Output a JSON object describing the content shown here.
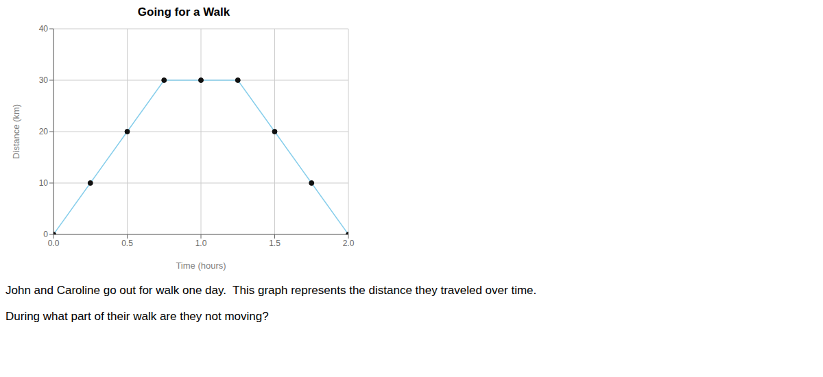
{
  "chart_data": {
    "type": "line",
    "title": "Going for a Walk",
    "xlabel": "Time (hours)",
    "ylabel": "Distance (km)",
    "x": [
      0.0,
      0.25,
      0.5,
      0.75,
      1.0,
      1.25,
      1.5,
      1.75,
      2.0
    ],
    "series": [
      {
        "values": [
          0,
          10,
          20,
          30,
          30,
          30,
          20,
          10,
          0
        ],
        "color": "#87CEEB",
        "colors": [
          "#111111",
          "#111111",
          "#111111",
          "#111111",
          "#111111",
          "#111111",
          "#111111",
          "#111111",
          "#111111"
        ],
        "marker": "circle",
        "line_style": "solid"
      }
    ],
    "xlim": [
      0.0,
      2.0
    ],
    "ylim": [
      0,
      40
    ],
    "xticks": [
      {
        "value": 0.0,
        "label": "0.0"
      },
      0.5,
      {
        "value": 1.0,
        "label": "1.0"
      },
      1.5,
      {
        "value": 2.0,
        "label": "2.0"
      }
    ],
    "yticks": [
      0,
      10,
      20,
      30,
      40
    ],
    "grid": true,
    "annotations": [
      "John and Caroline go out for walk one day.  This graph represents the distance they traveled over time.",
      "During what part of their walk are they not moving?"
    ]
  }
}
